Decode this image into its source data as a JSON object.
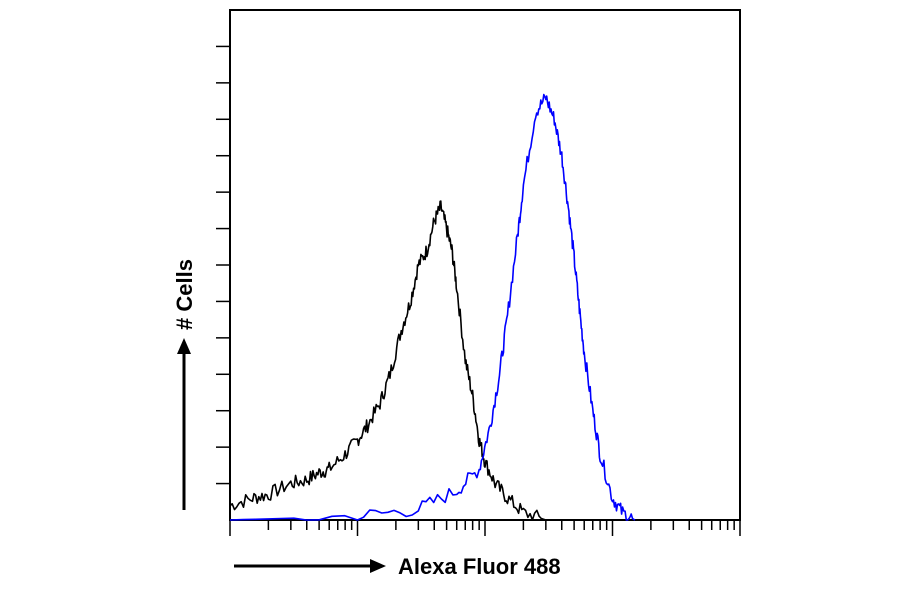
{
  "chart_data": {
    "type": "line",
    "title": "",
    "xlabel": "Alexa Fluor 488",
    "ylabel": "# Cells",
    "x_scale": "log",
    "xlim": [
      1,
      10000
    ],
    "ylim": [
      0,
      140
    ],
    "grid": false,
    "legend": "none",
    "series": [
      {
        "color": "#000000",
        "x": [
          1,
          1.5,
          2,
          3,
          4,
          5,
          6,
          8,
          10,
          12,
          15,
          18,
          22,
          26,
          30,
          35,
          40,
          45,
          50,
          55,
          60,
          70,
          80,
          90,
          100,
          120,
          150,
          200,
          300
        ],
        "y": [
          4,
          6,
          7,
          10,
          11,
          13,
          14,
          18,
          22,
          26,
          32,
          40,
          52,
          60,
          70,
          74,
          82,
          86,
          80,
          74,
          64,
          44,
          34,
          22,
          16,
          10,
          6,
          2,
          0
        ]
      },
      {
        "color": "#0000ff",
        "x": [
          1,
          10,
          30,
          60,
          90,
          110,
          130,
          150,
          180,
          200,
          250,
          300,
          350,
          400,
          450,
          500,
          550,
          600,
          700,
          800,
          1000,
          1200,
          1500
        ],
        "y": [
          0,
          1,
          3,
          8,
          14,
          26,
          40,
          56,
          78,
          92,
          112,
          116,
          110,
          100,
          86,
          72,
          58,
          46,
          30,
          18,
          6,
          2,
          0
        ]
      }
    ]
  }
}
